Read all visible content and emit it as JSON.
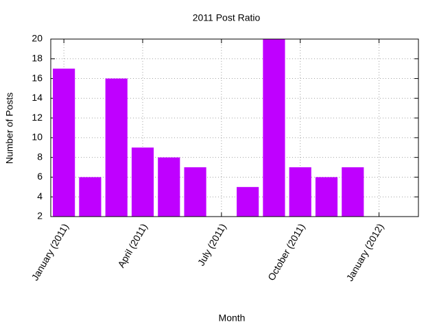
{
  "chart_data": {
    "type": "bar",
    "title": "2011 Post Ratio",
    "x_label": "Month",
    "y_label": "Number of Posts",
    "categories": [
      "January (2011)",
      null,
      null,
      "April (2011)",
      null,
      null,
      "July (2011)",
      null,
      null,
      "October (2011)",
      null,
      null,
      "January (2012)",
      null
    ],
    "values": [
      17,
      6,
      16,
      9,
      8,
      7,
      null,
      5,
      20,
      7,
      6,
      7,
      null,
      null
    ],
    "color": "#bf00ff",
    "ylim": [
      2,
      20
    ],
    "yticks": [
      2,
      4,
      6,
      8,
      10,
      12,
      14,
      16,
      18,
      20
    ],
    "grid": true
  }
}
